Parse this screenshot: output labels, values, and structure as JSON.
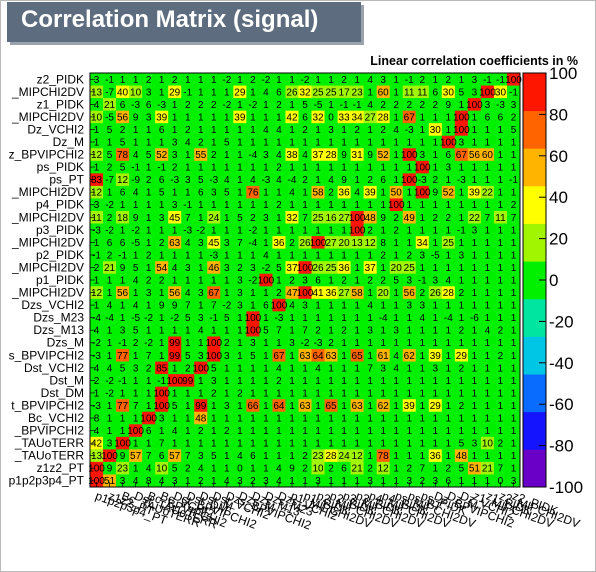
{
  "header": {
    "title": "Correlation Matrix (signal)",
    "subtitle": "Linear correlation coefficients in %"
  },
  "colors": {
    "title_bg": "#5d6c7f",
    "plot_bg": "#00f000",
    "scale": [
      "#6a00c8",
      "#1414ff",
      "#0a6cff",
      "#00c6e6",
      "#00e6a0",
      "#00f000",
      "#a2f500",
      "#ffff00",
      "#ffb400",
      "#ff6400",
      "#ff1600"
    ]
  },
  "chart_data": {
    "type": "heatmap",
    "title": "Correlation Matrix (signal)",
    "subtitle": "Linear correlation coefficients in %",
    "zlim": [
      -100,
      100
    ],
    "colorbar_ticks": [
      100,
      80,
      60,
      40,
      20,
      0,
      -20,
      -40,
      -60,
      -80,
      -100
    ],
    "rows_top_to_bottom": [
      "z2_PIDK",
      "_MIPCHI2DV",
      "z1_PIDK",
      "_MIPCHI2DV",
      "Dz_VCHI2",
      "Dz_M",
      "z_BPVIPCHI2",
      "ps_PIDK",
      "ps_PT",
      "_MIPCHI2DV",
      "p4_PIDK",
      "_MIPCHI2DV",
      "p3_PIDK",
      "_MIPCHI2DV",
      "p2_PIDK",
      "_MIPCHI2DV",
      "p1_PIDK",
      "_MIPCHI2DV",
      "Dzs_VCHI2",
      "Dzs_M23",
      "Dzs_M13",
      "Dzs_M",
      "s_BPVIPCHI2",
      "Dst_VCHI2",
      "Dst_M",
      "Dst_DM",
      "t_BPVIPCHI2",
      "Bc_VCHI2",
      "_BPVIPCHI2",
      "_TAUoTERR",
      "_TAUoTERR",
      "z1z2_PT",
      "p1p2p3p4_PT"
    ],
    "columns_left_to_right": [
      "p1p2p3p4_PT",
      "z1z2_PT",
      "Bc_TAUoTERR",
      "Dst_TAUoTERR",
      "Bc_BPVIPCHI2",
      "Bc_VCHI2",
      "Dst_BPVIPCHI2",
      "Dst_DM",
      "Dst_M",
      "Dst_VCHI2",
      "Dzs_BPVIPCHI2",
      "Dzs_M",
      "Dzs_M13",
      "Dzs_M23",
      "Dzs_VCHI2",
      "p1_MIPCHI2DV",
      "p1_PIDK",
      "p2_MIPCHI2DV",
      "p2_PIDK",
      "p3_MIPCHI2DV",
      "p3_PIDK",
      "p4_MIPCHI2DV",
      "p4_PIDK",
      "ps_MIPCHI2DV",
      "ps_PT",
      "ps_PIDK",
      "Dz_BPVIPCHI2",
      "Dz_M",
      "Dz_VCHI2",
      "z1_MIPCHI2DV",
      "z1_PIDK",
      "z2_MIPCHI2DV",
      "z2_PIDK"
    ],
    "values_top_to_bottom": [
      [
        3,
        -1,
        1,
        1,
        2,
        1,
        2,
        1,
        1,
        1,
        -2,
        1,
        2,
        -2,
        1,
        1,
        -2,
        1,
        1,
        2,
        1,
        4,
        3,
        1,
        -1,
        2,
        1,
        2,
        1,
        3,
        -1,
        -1,
        100
      ],
      [
        13,
        -7,
        40,
        10,
        3,
        1,
        29,
        -1,
        1,
        1,
        1,
        29,
        1,
        4,
        6,
        26,
        32,
        25,
        25,
        17,
        23,
        1,
        60,
        1,
        11,
        11,
        6,
        30,
        5,
        3,
        100,
        30,
        -1
      ],
      [
        4,
        21,
        6,
        -3,
        6,
        -3,
        1,
        2,
        2,
        2,
        -2,
        1,
        -2,
        1,
        2,
        1,
        5,
        -5,
        1,
        -1,
        -1,
        4,
        2,
        2,
        2,
        2,
        2,
        9,
        1,
        100,
        3,
        -3,
        3
      ],
      [
        10,
        -5,
        56,
        9,
        3,
        39,
        1,
        1,
        1,
        1,
        1,
        39,
        1,
        1,
        1,
        42,
        6,
        32,
        0,
        33,
        34,
        27,
        28,
        1,
        67,
        1,
        1,
        1,
        100,
        1,
        6,
        6,
        2
      ],
      [
        1,
        5,
        2,
        1,
        1,
        6,
        1,
        2,
        1,
        1,
        1,
        1,
        1,
        4,
        4,
        1,
        2,
        1,
        3,
        1,
        2,
        1,
        2,
        4,
        -3,
        1,
        30,
        1,
        100,
        1,
        1,
        1,
        5
      ],
      [
        1,
        1,
        5,
        1,
        1,
        1,
        3,
        4,
        2,
        1,
        5,
        1,
        1,
        1,
        1,
        1,
        1,
        1,
        1,
        1,
        1,
        1,
        1,
        1,
        1,
        1,
        1,
        100,
        3,
        1,
        1,
        1,
        1
      ],
      [
        12,
        5,
        78,
        4,
        5,
        52,
        3,
        1,
        55,
        2,
        1,
        1,
        -4,
        3,
        4,
        38,
        4,
        37,
        28,
        9,
        31,
        9,
        52,
        1,
        100,
        3,
        1,
        6,
        67,
        56,
        60,
        1,
        1
      ],
      [
        1,
        2,
        5,
        -1,
        1,
        -1,
        2,
        1,
        1,
        1,
        1,
        1,
        1,
        1,
        2,
        1,
        1,
        1,
        1,
        1,
        1,
        1,
        1,
        1,
        1,
        100,
        1,
        3,
        1,
        1,
        1,
        1,
        1
      ],
      [
        83,
        -7,
        12,
        -9,
        2,
        6,
        -3,
        3,
        5,
        -3,
        4,
        1,
        4,
        -3,
        4,
        -4,
        2,
        1,
        4,
        9,
        1,
        2,
        6,
        1,
        100,
        -3,
        2,
        1,
        -3,
        1,
        1,
        1,
        -1
      ],
      [
        12,
        1,
        6,
        4,
        1,
        5,
        1,
        1,
        6,
        3,
        5,
        1,
        76,
        1,
        1,
        4,
        1,
        58,
        2,
        36,
        4,
        39,
        1,
        50,
        1,
        100,
        9,
        52,
        1,
        39,
        22,
        1,
        1
      ],
      [
        3,
        -2,
        1,
        1,
        1,
        1,
        3,
        -1,
        1,
        1,
        1,
        1,
        1,
        1,
        2,
        1,
        1,
        1,
        1,
        1,
        1,
        1,
        1,
        100,
        1,
        1,
        1,
        1,
        1,
        1,
        1,
        1,
        2
      ],
      [
        11,
        2,
        18,
        9,
        1,
        3,
        45,
        7,
        1,
        24,
        1,
        5,
        2,
        3,
        1,
        32,
        7,
        25,
        16,
        27,
        100,
        48,
        9,
        2,
        49,
        1,
        2,
        2,
        1,
        22,
        7,
        11,
        7
      ],
      [
        -3,
        -2,
        1,
        -2,
        1,
        1,
        1,
        -3,
        -2,
        1,
        1,
        1,
        -2,
        1,
        1,
        1,
        1,
        1,
        1,
        1,
        100,
        2,
        1,
        2,
        1,
        1,
        1,
        1,
        -1,
        3,
        1,
        1,
        1
      ],
      [
        1,
        6,
        6,
        -5,
        1,
        2,
        63,
        4,
        3,
        45,
        3,
        7,
        -4,
        1,
        36,
        2,
        26,
        100,
        27,
        20,
        13,
        12,
        8,
        1,
        1,
        34,
        1,
        25,
        1,
        1,
        1,
        1,
        1
      ],
      [
        -1,
        2,
        -1,
        1,
        2,
        1,
        1,
        1,
        1,
        -3,
        1,
        1,
        1,
        4,
        1,
        1,
        1,
        1,
        1,
        1,
        1,
        1,
        2,
        1,
        2,
        3,
        -5,
        1,
        3,
        1,
        1,
        1,
        1
      ],
      [
        2,
        21,
        9,
        5,
        1,
        54,
        4,
        3,
        1,
        46,
        3,
        2,
        3,
        -2,
        5,
        37,
        100,
        26,
        25,
        36,
        1,
        37,
        1,
        20,
        25,
        1,
        1,
        1,
        1,
        1,
        1,
        1,
        1
      ],
      [
        1,
        1,
        1,
        4,
        2,
        2,
        1,
        1,
        1,
        1,
        1,
        3,
        -2,
        100,
        1,
        2,
        3,
        6,
        1,
        2,
        1,
        2,
        2,
        5,
        3,
        -1,
        3,
        4,
        1,
        1,
        1,
        1,
        1
      ],
      [
        12,
        1,
        56,
        1,
        3,
        1,
        56,
        4,
        3,
        67,
        1,
        3,
        1,
        1,
        2,
        47,
        100,
        41,
        36,
        27,
        58,
        1,
        20,
        1,
        56,
        2,
        26,
        28,
        2,
        1,
        1,
        1,
        1
      ],
      [
        1,
        4,
        1,
        4,
        1,
        9,
        9,
        7,
        1,
        7,
        -2,
        3,
        1,
        6,
        100,
        4,
        3,
        1,
        1,
        1,
        1,
        4,
        1,
        1,
        3,
        3,
        1,
        1,
        1,
        1,
        1,
        1,
        1
      ],
      [
        -4,
        -4,
        1,
        -5,
        -2,
        1,
        -2,
        5,
        3,
        -1,
        5,
        1,
        100,
        1,
        -3,
        1,
        1,
        1,
        1,
        1,
        1,
        1,
        -4,
        1,
        1,
        4,
        1,
        -4,
        1,
        -6,
        1,
        1,
        1
      ],
      [
        4,
        1,
        3,
        5,
        1,
        1,
        1,
        1,
        4,
        1,
        1,
        1,
        100,
        5,
        7,
        1,
        7,
        2,
        1,
        2,
        1,
        3,
        1,
        3,
        1,
        1,
        1,
        1,
        2,
        1,
        4,
        2,
        1
      ],
      [
        -2,
        1,
        -1,
        2,
        -2,
        1,
        99,
        1,
        1,
        100,
        2,
        1,
        3,
        1,
        1,
        3,
        -2,
        -3,
        2,
        1,
        1,
        1,
        1,
        1,
        1,
        1,
        1,
        1,
        1,
        1,
        1,
        1,
        1
      ],
      [
        -3,
        1,
        77,
        1,
        7,
        1,
        99,
        5,
        3,
        100,
        3,
        1,
        5,
        1,
        67,
        1,
        63,
        64,
        63,
        1,
        65,
        1,
        61,
        4,
        62,
        1,
        39,
        1,
        29,
        1,
        1,
        2,
        1
      ],
      [
        4,
        4,
        5,
        3,
        2,
        85,
        1,
        2,
        100,
        5,
        1,
        1,
        1,
        1,
        4,
        1,
        1,
        4,
        1,
        1,
        1,
        7,
        3,
        4,
        1,
        1,
        3,
        1,
        2,
        1,
        1,
        1,
        1
      ],
      [
        2,
        -2,
        -1,
        1,
        1,
        -1,
        100,
        99,
        1,
        3,
        1,
        1,
        1,
        1,
        2,
        1,
        1,
        1,
        1,
        1,
        1,
        1,
        1,
        1,
        1,
        1,
        1,
        1,
        1,
        1,
        1,
        1,
        1
      ],
      [
        1,
        -2,
        1,
        1,
        1,
        100,
        1,
        1,
        1,
        2,
        1,
        2,
        1,
        1,
        1,
        1,
        1,
        1,
        1,
        1,
        1,
        1,
        1,
        1,
        1,
        1,
        1,
        1,
        1,
        1,
        1,
        1,
        1
      ],
      [
        -3,
        1,
        77,
        7,
        1,
        100,
        5,
        1,
        99,
        1,
        3,
        1,
        66,
        1,
        64,
        1,
        63,
        1,
        65,
        1,
        63,
        1,
        62,
        1,
        39,
        1,
        29,
        1,
        2,
        1,
        1,
        1,
        1
      ],
      [
        8,
        1,
        1,
        1,
        100,
        3,
        1,
        1,
        48,
        1,
        1,
        1,
        1,
        1,
        1,
        1,
        1,
        1,
        1,
        1,
        1,
        1,
        1,
        1,
        1,
        1,
        1,
        1,
        1,
        1,
        1,
        1,
        1
      ],
      [
        4,
        1,
        1,
        100,
        6,
        1,
        4,
        1,
        2,
        1,
        2,
        1,
        1,
        1,
        1,
        1,
        1,
        1,
        1,
        1,
        1,
        1,
        1,
        1,
        1,
        1,
        1,
        1,
        1,
        1,
        1,
        1,
        1
      ],
      [
        42,
        3,
        100,
        1,
        1,
        7,
        1,
        1,
        1,
        1,
        1,
        1,
        1,
        1,
        1,
        1,
        1,
        1,
        1,
        1,
        1,
        1,
        1,
        1,
        1,
        1,
        1,
        1,
        5,
        3,
        10,
        2,
        1
      ],
      [
        13,
        100,
        9,
        57,
        7,
        6,
        57,
        7,
        3,
        5,
        1,
        4,
        6,
        1,
        1,
        1,
        2,
        23,
        28,
        24,
        12,
        1,
        78,
        1,
        1,
        1,
        36,
        1,
        48,
        1,
        1,
        1,
        1
      ],
      [
        100,
        9,
        23,
        1,
        4,
        10,
        5,
        2,
        4,
        1,
        1,
        0,
        1,
        1,
        4,
        9,
        2,
        10,
        2,
        6,
        21,
        2,
        12,
        1,
        2,
        7,
        1,
        2,
        5,
        51,
        21,
        7,
        1
      ],
      [
        100,
        51,
        3,
        4,
        8,
        4,
        3,
        1,
        2,
        1,
        4,
        3,
        2,
        3,
        4,
        1,
        1,
        3,
        1,
        1,
        1,
        3,
        1,
        1,
        3,
        2,
        3,
        6,
        1,
        1,
        1,
        0,
        3
      ]
    ]
  }
}
